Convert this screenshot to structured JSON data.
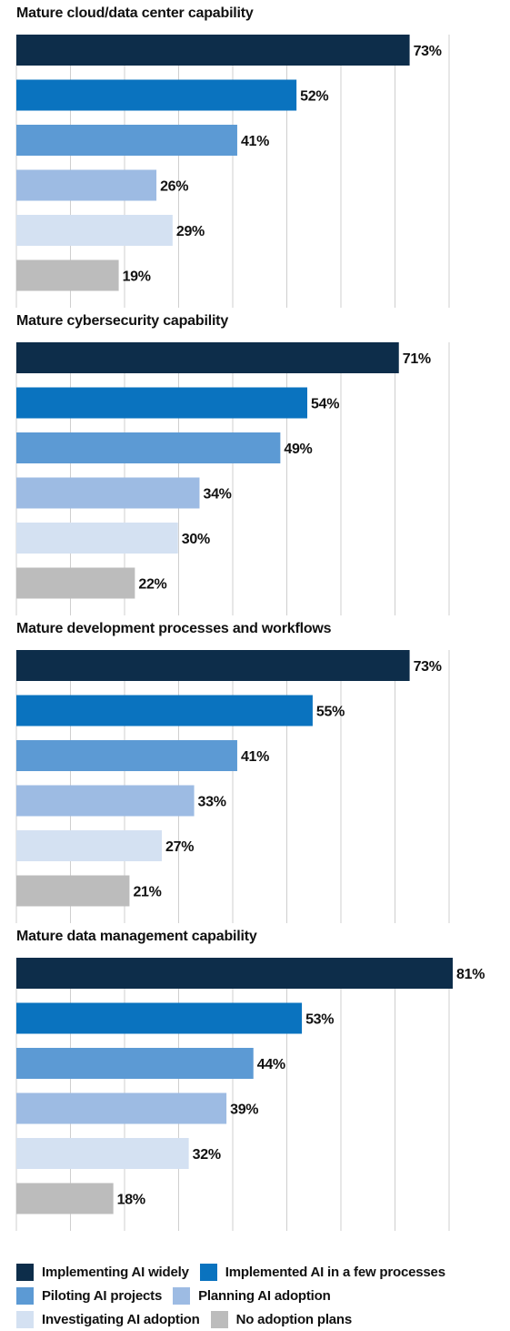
{
  "chart_data": {
    "type": "bar",
    "orientation": "horizontal",
    "xlim": [
      0,
      81
    ],
    "grid": true,
    "legend_position": "bottom",
    "series": [
      {
        "name": "Implementing AI widely",
        "color": "#0d2d4a"
      },
      {
        "name": "Implemented AI in a few processes",
        "color": "#0a73bf"
      },
      {
        "name": "Piloting AI projects",
        "color": "#5c9ad4"
      },
      {
        "name": "Planning  AI adoption",
        "color": "#9dbbe3"
      },
      {
        "name": "Investigating AI adoption",
        "color": "#d4e1f2"
      },
      {
        "name": "No adoption plans",
        "color": "#bcbcbc"
      }
    ],
    "panels": [
      {
        "title": "Mature cloud/data center capability",
        "values": [
          73,
          52,
          41,
          26,
          29,
          19
        ],
        "labels": [
          "73%",
          "52%",
          "41%",
          "26%",
          "29%",
          "19%"
        ]
      },
      {
        "title": "Mature cybersecurity capability",
        "values": [
          71,
          54,
          49,
          34,
          30,
          22
        ],
        "labels": [
          "71%",
          "54%",
          "49%",
          "34%",
          "30%",
          "22%"
        ]
      },
      {
        "title": "Mature development processes and workflows",
        "values": [
          73,
          55,
          41,
          33,
          27,
          21
        ],
        "labels": [
          "73%",
          "55%",
          "41%",
          "33%",
          "27%",
          "21%"
        ]
      },
      {
        "title": "Mature data management capability",
        "values": [
          81,
          53,
          44,
          39,
          32,
          18
        ],
        "labels": [
          "81%",
          "53%",
          "44%",
          "39%",
          "32%",
          "18%"
        ]
      }
    ]
  },
  "legend": {
    "rows": [
      [
        0,
        1
      ],
      [
        2,
        3
      ],
      [
        4,
        5
      ]
    ]
  }
}
